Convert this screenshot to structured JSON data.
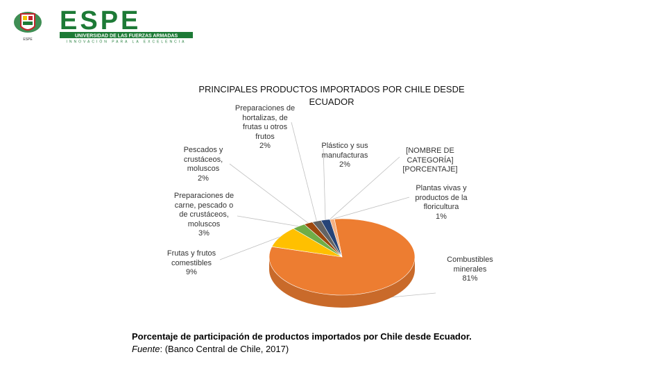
{
  "logo": {
    "brand": "ESPE",
    "subtitle": "UNIVERSIDAD DE LAS FUERZAS ARMADAS",
    "tagline": "INNOVACIÓN PARA LA EXCELENCIA",
    "colors": {
      "green": "#1d7a36",
      "red": "#c0272d",
      "yellow": "#f2c200"
    }
  },
  "chart_data": {
    "type": "pie",
    "title": "PRINCIPALES PRODUCTOS IMPORTADOS POR CHILE DESDE ECUADOR",
    "slices": [
      {
        "name": "Combustibles minerales",
        "label_lines": [
          "Combustibles",
          "minerales",
          "81%"
        ],
        "value": 81,
        "color": "#ed7d31"
      },
      {
        "name": "Frutas y frutos comestibles",
        "label_lines": [
          "Frutas y frutos",
          "comestibles",
          "9%"
        ],
        "value": 9,
        "color": "#ffc000"
      },
      {
        "name": "Preparaciones de carne, pescado o de crustáceos, moluscos",
        "label_lines": [
          "Preparaciones de",
          "carne, pescado o",
          "de crustáceos,",
          "moluscos",
          "3%"
        ],
        "value": 3,
        "color": "#70ad47"
      },
      {
        "name": "Pescados y crustáceos, moluscos",
        "label_lines": [
          "Pescados y",
          "crustáceos,",
          "moluscos",
          "2%"
        ],
        "value": 2,
        "color": "#9e480e"
      },
      {
        "name": "Preparaciones de hortalizas, de frutas u otros frutos",
        "label_lines": [
          "Preparaciones de",
          "hortalizas, de",
          "frutas u otros",
          "frutos",
          "2%"
        ],
        "value": 2,
        "color": "#636363"
      },
      {
        "name": "Plástico y sus manufacturas",
        "label_lines": [
          "Plástico y sus",
          "manufacturas",
          "2%"
        ],
        "value": 2,
        "color": "#264478"
      },
      {
        "name": "[NOMBRE DE CATEGORÍA]",
        "label_lines": [
          "[NOMBRE DE",
          "CATEGORÍA]",
          "[PORCENTAJE]"
        ],
        "value": 0,
        "color": "#43682b"
      },
      {
        "name": "Plantas vivas y productos de la floricultura",
        "label_lines": [
          "Plantas vivas y",
          "productos de la",
          "floricultura",
          "1%"
        ],
        "value": 1,
        "color": "#f4b183"
      }
    ]
  },
  "caption": {
    "main": "Porcentaje de participación de productos importados por Chile desde Ecuador.",
    "source_label": "Fuente",
    "source_text": ": (Banco Central de Chile, 2017)"
  }
}
